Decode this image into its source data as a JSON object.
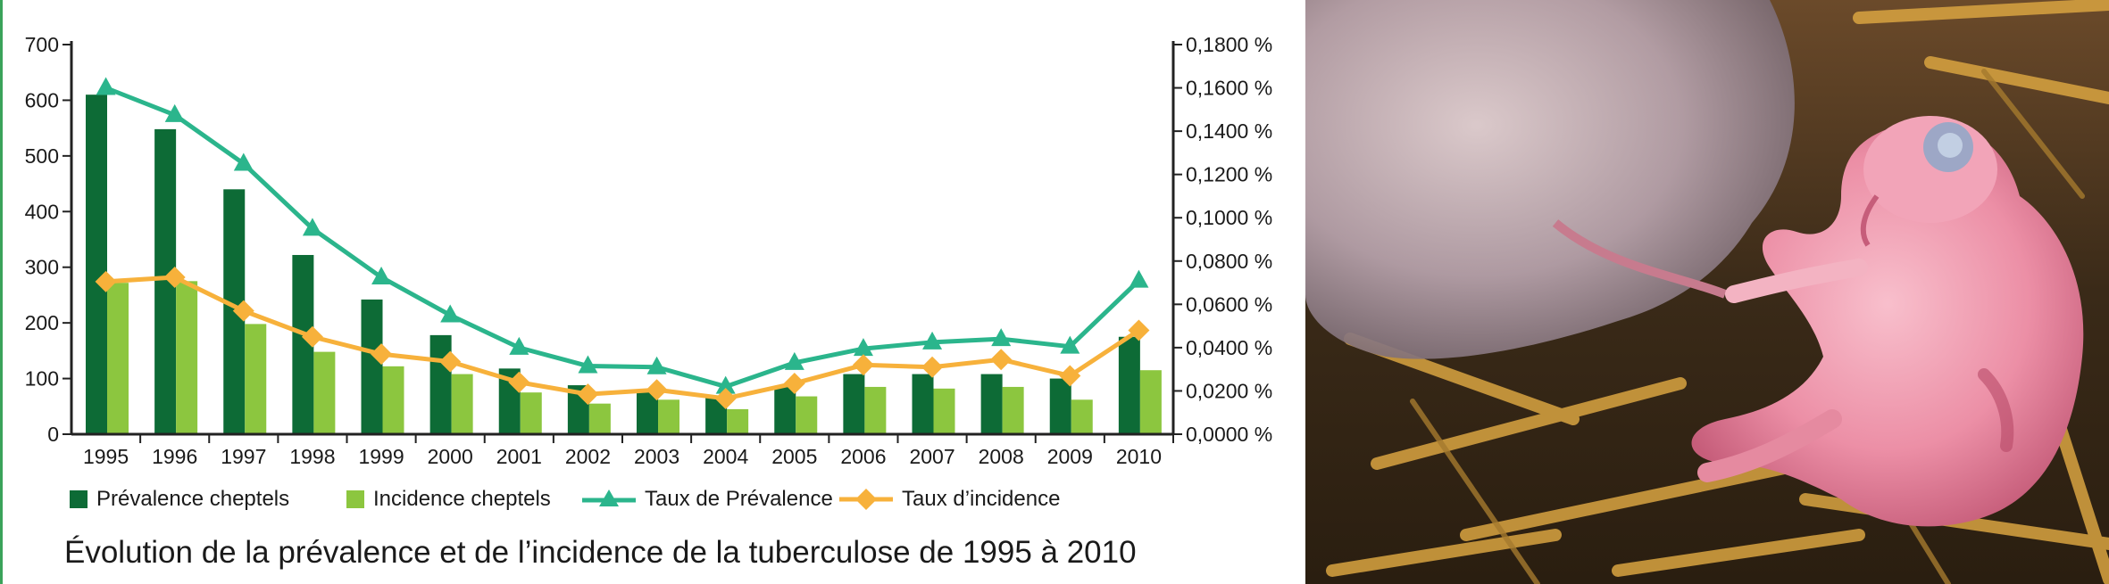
{
  "caption": "Évolution de la prévalence et de l’incidence de la tuberculose de 1995 à 2010",
  "legend": {
    "prev_cheptels": "Prévalence cheptels",
    "inc_cheptels": "Incidence cheptels",
    "taux_prev": "Taux de Prévalence",
    "taux_inc": "Taux d’incidence"
  },
  "colors": {
    "prev_bar": "#0d6b36",
    "inc_bar": "#8cc63f",
    "taux_prev": "#2bb58c",
    "taux_inc": "#f7b13b"
  },
  "chart_data": {
    "type": "bar",
    "categories": [
      "1995",
      "1996",
      "1997",
      "1998",
      "1999",
      "2000",
      "2001",
      "2002",
      "2003",
      "2004",
      "2005",
      "2006",
      "2007",
      "2008",
      "2009",
      "2010"
    ],
    "left_axis": {
      "ylim": [
        0,
        700
      ],
      "ticks": [
        "0",
        "100",
        "200",
        "300",
        "400",
        "500",
        "600",
        "700"
      ]
    },
    "right_axis": {
      "ylim": [
        0,
        0.18
      ],
      "ticks": [
        "0,0000 %",
        "0,0200 %",
        "0,0400 %",
        "0,0600 %",
        "0,0800 %",
        "0,1000 %",
        "0,1200 %",
        "0,1400 %",
        "0,1600 %",
        "0,1800 %"
      ]
    },
    "series": [
      {
        "name": "Prévalence cheptels",
        "kind": "bar",
        "axis": "left",
        "values": [
          610,
          548,
          440,
          322,
          242,
          178,
          118,
          88,
          78,
          68,
          85,
          108,
          108,
          108,
          100,
          175
        ]
      },
      {
        "name": "Incidence cheptels",
        "kind": "bar",
        "axis": "left",
        "values": [
          272,
          275,
          198,
          148,
          122,
          108,
          75,
          55,
          62,
          45,
          68,
          85,
          82,
          85,
          62,
          115
        ]
      },
      {
        "name": "Taux de Prévalence",
        "kind": "line",
        "axis": "right",
        "marker": "triangle",
        "values": [
          0.16,
          0.1475,
          0.125,
          0.095,
          0.0725,
          0.055,
          0.04,
          0.0315,
          0.031,
          0.022,
          0.033,
          0.0395,
          0.0425,
          0.044,
          0.0405,
          0.071
        ]
      },
      {
        "name": "Taux d’incidence",
        "kind": "line",
        "axis": "right",
        "marker": "diamond",
        "values": [
          0.0705,
          0.0725,
          0.057,
          0.045,
          0.037,
          0.0335,
          0.024,
          0.0185,
          0.0205,
          0.0165,
          0.0235,
          0.032,
          0.031,
          0.0345,
          0.027,
          0.048
        ]
      }
    ],
    "grid": false,
    "legend_position": "bottom"
  }
}
